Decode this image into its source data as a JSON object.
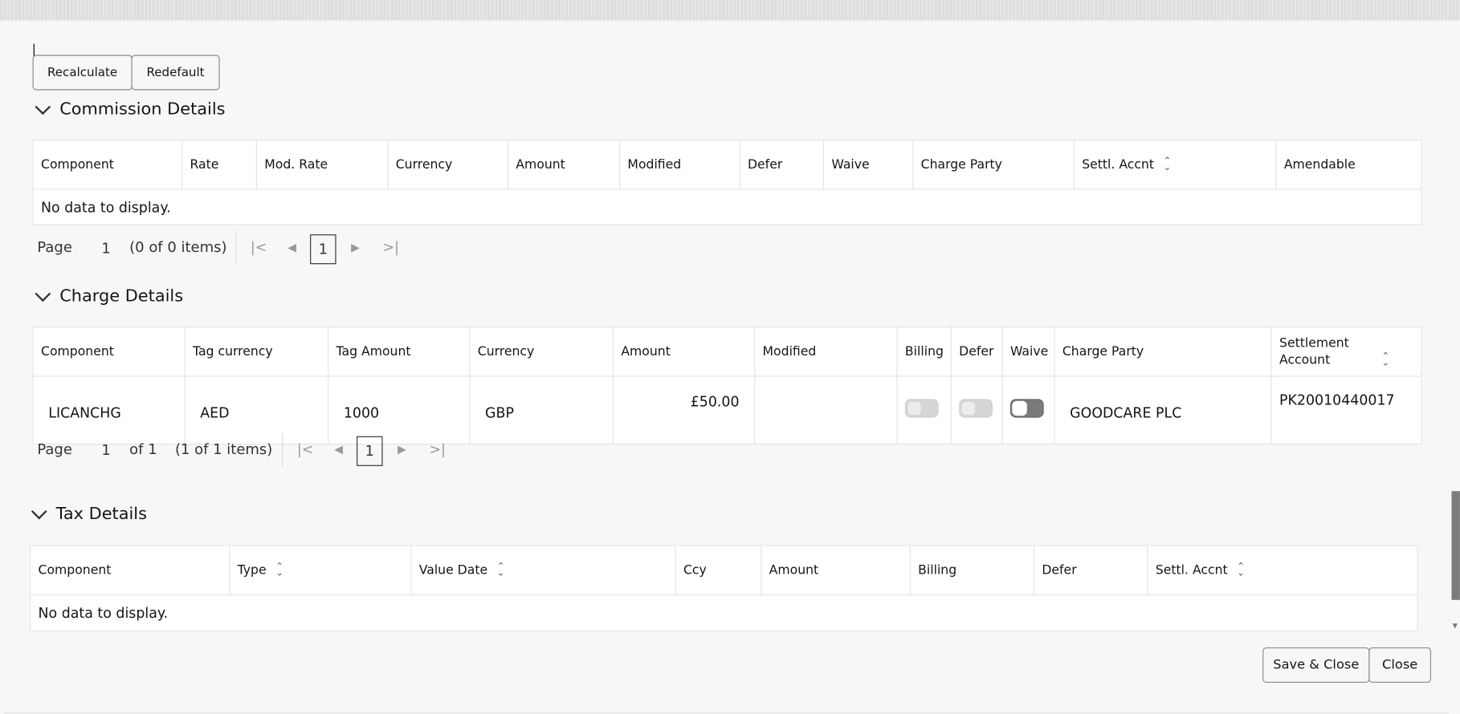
{
  "toolbar": {
    "recalculate": "Recalculate",
    "redefault": "Redefault"
  },
  "commission": {
    "title": "Commission Details",
    "columns": [
      {
        "label": "Component"
      },
      {
        "label": "Rate"
      },
      {
        "label": "Mod. Rate"
      },
      {
        "label": "Currency"
      },
      {
        "label": "Amount"
      },
      {
        "label": "Modified"
      },
      {
        "label": "Defer"
      },
      {
        "label": "Waive"
      },
      {
        "label": "Charge Party"
      },
      {
        "label": "Settl. Accnt",
        "sortable": true
      },
      {
        "label": "Amendable"
      }
    ],
    "empty": "No data to display.",
    "pager": {
      "page_label": "Page",
      "page": "1",
      "items": "(0 of 0 items)",
      "current": "1"
    }
  },
  "charge": {
    "title": "Charge Details",
    "columns": [
      {
        "label": "Component"
      },
      {
        "label": "Tag currency"
      },
      {
        "label": "Tag Amount"
      },
      {
        "label": "Currency"
      },
      {
        "label": "Amount"
      },
      {
        "label": "Modified"
      },
      {
        "label": "Billing"
      },
      {
        "label": "Defer"
      },
      {
        "label": "Waive"
      },
      {
        "label": "Charge Party"
      },
      {
        "label": "Settlement Account",
        "sortable": true
      }
    ],
    "rows": [
      {
        "component": "LICANCHG",
        "tag_currency": "AED",
        "tag_amount": "1000",
        "currency": "GBP",
        "amount": "£50.00",
        "modified": "",
        "billing": false,
        "defer": false,
        "waive": false,
        "charge_party": "GOODCARE PLC",
        "settlement_account": "PK20010440017"
      }
    ],
    "pager": {
      "page_label": "Page",
      "page": "1",
      "of": "of 1",
      "items": "(1 of 1 items)",
      "current": "1"
    }
  },
  "tax": {
    "title": "Tax Details",
    "columns": [
      {
        "label": "Component"
      },
      {
        "label": "Type",
        "sortable": true
      },
      {
        "label": "Value Date",
        "sortable": true
      },
      {
        "label": "Ccy"
      },
      {
        "label": "Amount"
      },
      {
        "label": "Billing"
      },
      {
        "label": "Defer"
      },
      {
        "label": "Settl. Accnt",
        "sortable": true
      }
    ],
    "empty": "No data to display."
  },
  "footer": {
    "save_close": "Save & Close",
    "close": "Close"
  }
}
